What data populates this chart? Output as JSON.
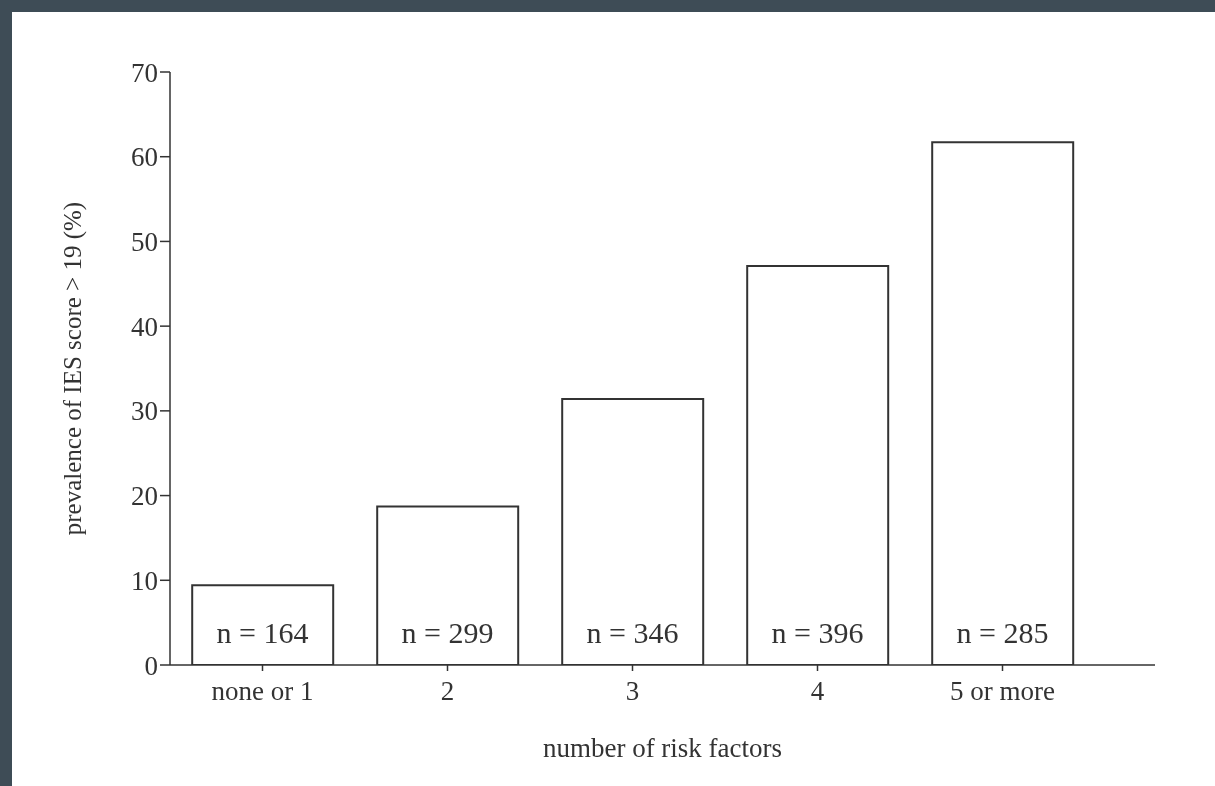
{
  "chart_data": {
    "type": "bar",
    "xlabel": "number of risk factors",
    "ylabel": "prevalence of IES score > 19 (%)",
    "categories": [
      "none or 1",
      "2",
      "3",
      "4",
      "5 or more"
    ],
    "values": [
      9.4,
      18.7,
      31.4,
      47.1,
      61.7
    ],
    "color": "#ffffff",
    "ylim": [
      0,
      70
    ],
    "yticks": [
      0,
      10,
      20,
      30,
      40,
      50,
      60,
      70
    ],
    "grid": false,
    "legend": false,
    "annotations": [
      "n = 164",
      "n = 299",
      "n = 346",
      "n = 396",
      "n = 285"
    ]
  }
}
